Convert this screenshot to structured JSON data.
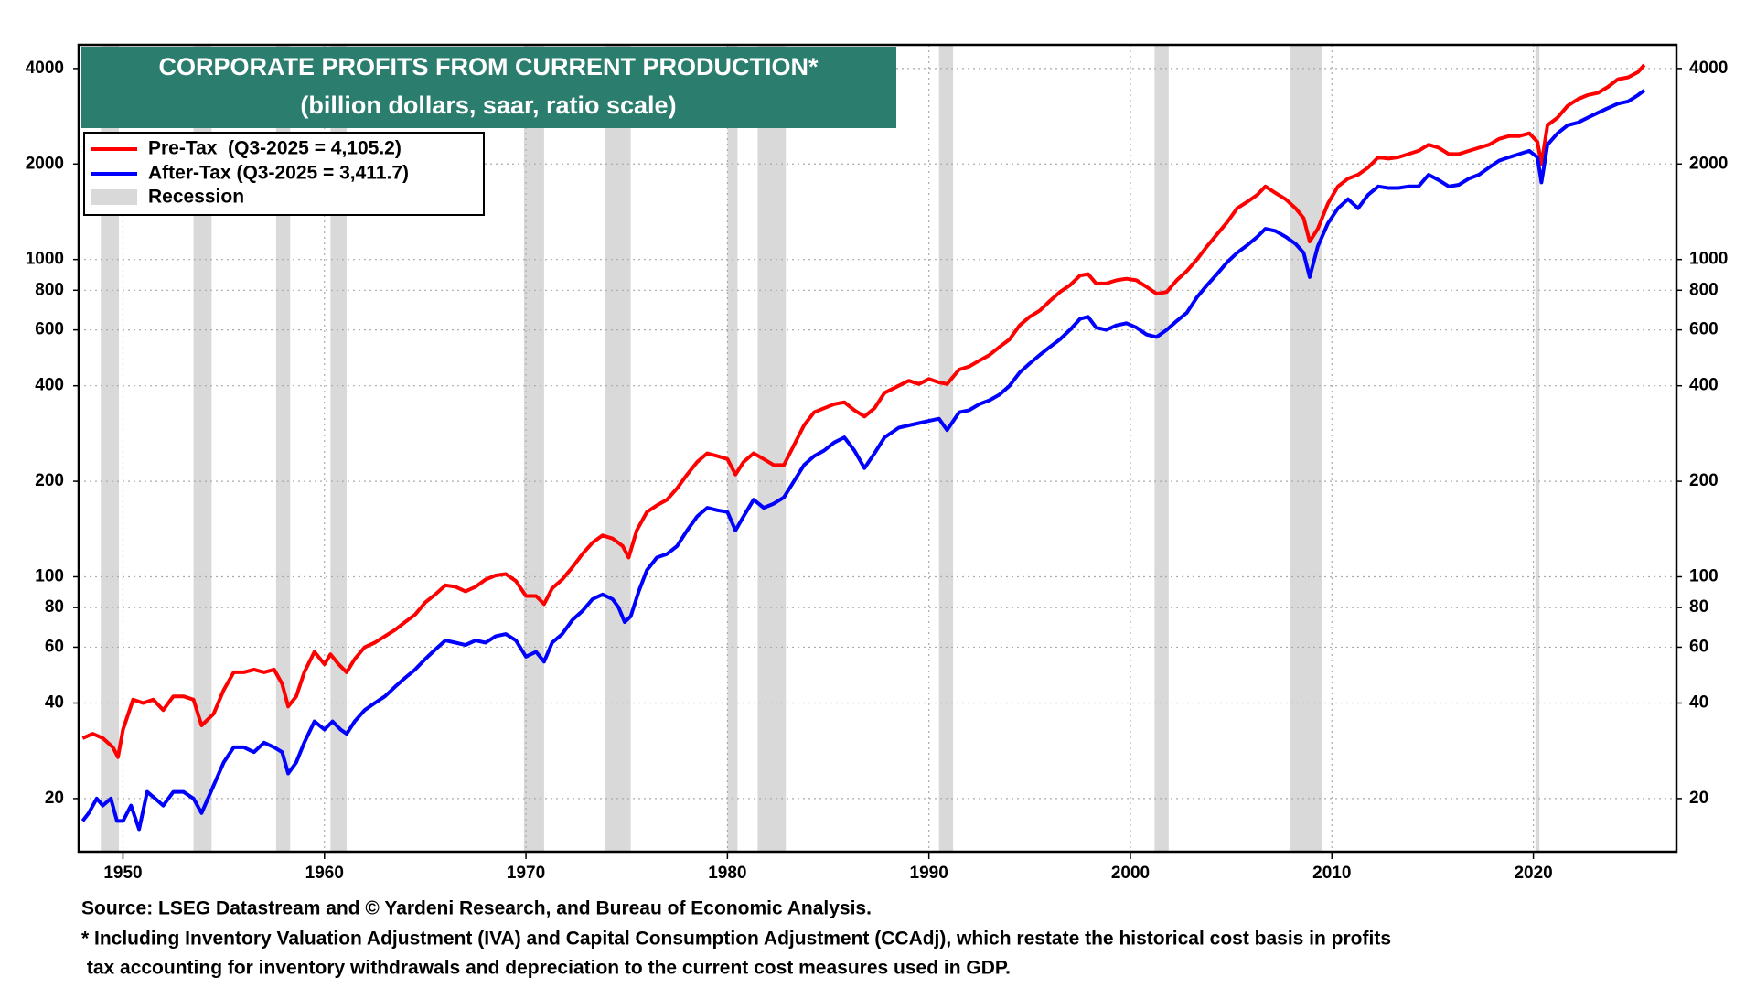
{
  "chart_data": {
    "type": "line",
    "title": "CORPORATE PROFITS FROM CURRENT PRODUCTION*",
    "subtitle": "(billion dollars, saar, ratio scale)",
    "source": "Source: LSEG Datastream and © Yardeni Research, and Bureau of Economic Analysis.",
    "note": [
      "* Including Inventory Valuation Adjustment (IVA) and Capital Consumption Adjustment (CCAdj), which restate the historical cost basis in profits",
      " tax accounting for inventory withdrawals and depreciation to the current cost measures used in GDP."
    ],
    "log_scale": true,
    "grid": true,
    "xlim": [
      1947.8,
      2027.1
    ],
    "xticks": [
      1950,
      1960,
      1970,
      1980,
      1990,
      2000,
      2010,
      2020
    ],
    "ylim": [
      13.6,
      4750
    ],
    "yticks": [
      20,
      40,
      60,
      80,
      100,
      200,
      400,
      600,
      800,
      1000,
      2000,
      4000
    ],
    "recession_label": "Recession",
    "recession_color": "#d9d9d9",
    "recessions": [
      [
        1948.9,
        1949.8
      ],
      [
        1953.5,
        1954.4
      ],
      [
        1957.6,
        1958.3
      ],
      [
        1960.3,
        1961.1
      ],
      [
        1969.9,
        1970.9
      ],
      [
        1973.9,
        1975.2
      ],
      [
        1980.0,
        1980.5
      ],
      [
        1981.5,
        1982.9
      ],
      [
        1990.5,
        1991.2
      ],
      [
        2001.2,
        2001.9
      ],
      [
        2007.9,
        2009.5
      ],
      [
        2020.1,
        2020.3
      ]
    ],
    "series": [
      {
        "name": "Pre-Tax  (Q3-2025 = 4,105.2)",
        "color": "#ff0000",
        "x": [
          1948,
          1948.5,
          1949,
          1949.5,
          1949.75,
          1950,
          1950.5,
          1951,
          1951.5,
          1952,
          1952.5,
          1953,
          1953.5,
          1953.9,
          1954.5,
          1955,
          1955.5,
          1956,
          1956.5,
          1957,
          1957.5,
          1957.9,
          1958.2,
          1958.6,
          1959,
          1959.5,
          1960,
          1960.3,
          1960.7,
          1961.1,
          1961.5,
          1962,
          1962.5,
          1963,
          1963.5,
          1964,
          1964.5,
          1965,
          1965.5,
          1966,
          1966.5,
          1967,
          1967.5,
          1968,
          1968.5,
          1969,
          1969.5,
          1970,
          1970.5,
          1970.9,
          1971.3,
          1971.8,
          1972.3,
          1972.8,
          1973.3,
          1973.8,
          1974.3,
          1974.8,
          1975.1,
          1975.5,
          1976,
          1976.5,
          1977,
          1977.5,
          1978,
          1978.5,
          1979,
          1979.5,
          1980,
          1980.4,
          1980.8,
          1981.3,
          1981.8,
          1982.3,
          1982.8,
          1983.3,
          1983.8,
          1984.3,
          1984.8,
          1985.3,
          1985.8,
          1986.3,
          1986.8,
          1987.3,
          1987.8,
          1988.5,
          1989,
          1989.5,
          1990,
          1990.5,
          1990.9,
          1991.5,
          1992,
          1992.5,
          1993,
          1993.5,
          1994,
          1994.5,
          1995,
          1995.5,
          1996,
          1996.5,
          1997,
          1997.5,
          1997.9,
          1998.3,
          1998.8,
          1999.3,
          1999.8,
          2000.3,
          2000.8,
          2001.3,
          2001.8,
          2002.3,
          2002.8,
          2003.3,
          2003.8,
          2004.3,
          2004.8,
          2005.3,
          2005.8,
          2006.3,
          2006.7,
          2007.2,
          2007.7,
          2008.2,
          2008.6,
          2008.9,
          2009.3,
          2009.8,
          2010.3,
          2010.8,
          2011.3,
          2011.8,
          2012.3,
          2012.8,
          2013.3,
          2013.8,
          2014.3,
          2014.8,
          2015.3,
          2015.8,
          2016.3,
          2016.8,
          2017.3,
          2017.8,
          2018.3,
          2018.8,
          2019.3,
          2019.8,
          2020.2,
          2020.4,
          2020.7,
          2021.2,
          2021.7,
          2022.2,
          2022.7,
          2023.2,
          2023.7,
          2024.2,
          2024.7,
          2025.2,
          2025.5
        ],
        "values": [
          31,
          32,
          31,
          29,
          27,
          33,
          41,
          40,
          41,
          38,
          42,
          42,
          41,
          34,
          37,
          44,
          50,
          50,
          51,
          50,
          51,
          46,
          39,
          42,
          50,
          58,
          53,
          57,
          53,
          50,
          55,
          60,
          62,
          65,
          68,
          72,
          76,
          83,
          88,
          94,
          93,
          90,
          93,
          98,
          101,
          102,
          97,
          87,
          87,
          82,
          92,
          98,
          107,
          118,
          128,
          135,
          132,
          125,
          115,
          140,
          160,
          168,
          175,
          190,
          210,
          230,
          245,
          240,
          235,
          210,
          230,
          245,
          235,
          225,
          225,
          260,
          300,
          330,
          340,
          350,
          355,
          335,
          320,
          340,
          380,
          400,
          415,
          405,
          420,
          410,
          405,
          450,
          460,
          480,
          500,
          530,
          560,
          620,
          660,
          690,
          740,
          790,
          830,
          890,
          900,
          840,
          840,
          860,
          870,
          860,
          820,
          780,
          790,
          860,
          920,
          1000,
          1100,
          1200,
          1310,
          1450,
          1520,
          1600,
          1700,
          1620,
          1550,
          1450,
          1350,
          1140,
          1250,
          1500,
          1700,
          1800,
          1850,
          1950,
          2100,
          2080,
          2100,
          2150,
          2200,
          2300,
          2250,
          2150,
          2150,
          2200,
          2250,
          2300,
          2400,
          2450,
          2450,
          2500,
          2350,
          2000,
          2650,
          2800,
          3050,
          3200,
          3300,
          3350,
          3500,
          3700,
          3750,
          3900,
          4105.2
        ]
      },
      {
        "name": "After-Tax (Q3-2025 = 3,411.7)",
        "color": "#0000ff",
        "x": [
          1948,
          1948.3,
          1948.7,
          1949,
          1949.4,
          1949.7,
          1950,
          1950.4,
          1950.8,
          1951.2,
          1951.6,
          1952,
          1952.5,
          1953,
          1953.5,
          1953.9,
          1954.5,
          1955,
          1955.5,
          1956,
          1956.5,
          1957,
          1957.5,
          1957.9,
          1958.2,
          1958.6,
          1959,
          1959.5,
          1960,
          1960.4,
          1960.8,
          1961.1,
          1961.5,
          1962,
          1962.5,
          1963,
          1963.5,
          1964,
          1964.5,
          1965,
          1965.5,
          1966,
          1966.5,
          1967,
          1967.5,
          1968,
          1968.5,
          1969,
          1969.5,
          1970,
          1970.5,
          1970.9,
          1971.3,
          1971.8,
          1972.3,
          1972.8,
          1973.3,
          1973.8,
          1974.3,
          1974.6,
          1974.9,
          1975.2,
          1975.6,
          1976,
          1976.5,
          1977,
          1977.5,
          1978,
          1978.5,
          1979,
          1979.5,
          1980,
          1980.4,
          1980.8,
          1981.3,
          1981.8,
          1982.3,
          1982.8,
          1983.3,
          1983.8,
          1984.3,
          1984.8,
          1985.3,
          1985.8,
          1986.3,
          1986.8,
          1987.3,
          1987.8,
          1988.5,
          1989,
          1989.5,
          1990,
          1990.5,
          1990.9,
          1991.5,
          1992,
          1992.5,
          1993,
          1993.5,
          1994,
          1994.5,
          1995,
          1995.5,
          1996,
          1996.5,
          1997,
          1997.5,
          1997.9,
          1998.3,
          1998.8,
          1999.3,
          1999.8,
          2000.3,
          2000.8,
          2001.3,
          2001.8,
          2002.3,
          2002.8,
          2003.3,
          2003.8,
          2004.3,
          2004.8,
          2005.3,
          2005.8,
          2006.3,
          2006.7,
          2007.2,
          2007.7,
          2008.2,
          2008.6,
          2008.9,
          2009.3,
          2009.8,
          2010.3,
          2010.8,
          2011.3,
          2011.8,
          2012.3,
          2012.8,
          2013.3,
          2013.8,
          2014.3,
          2014.8,
          2015.3,
          2015.8,
          2016.3,
          2016.8,
          2017.3,
          2017.8,
          2018.3,
          2018.8,
          2019.3,
          2019.8,
          2020.2,
          2020.4,
          2020.7,
          2021.2,
          2021.7,
          2022.2,
          2022.7,
          2023.2,
          2023.7,
          2024.2,
          2024.7,
          2025.2,
          2025.5
        ],
        "values": [
          17,
          18,
          20,
          19,
          20,
          17,
          17,
          19,
          16,
          21,
          20,
          19,
          21,
          21,
          20,
          18,
          22,
          26,
          29,
          29,
          28,
          30,
          29,
          28,
          24,
          26,
          30,
          35,
          33,
          35,
          33,
          32,
          35,
          38,
          40,
          42,
          45,
          48,
          51,
          55,
          59,
          63,
          62,
          61,
          63,
          62,
          65,
          66,
          63,
          56,
          58,
          54,
          62,
          66,
          73,
          78,
          85,
          88,
          85,
          80,
          72,
          75,
          90,
          105,
          115,
          118,
          125,
          140,
          155,
          165,
          162,
          160,
          140,
          155,
          175,
          165,
          170,
          178,
          200,
          225,
          240,
          250,
          265,
          275,
          250,
          220,
          245,
          275,
          295,
          300,
          305,
          310,
          315,
          290,
          330,
          335,
          350,
          360,
          375,
          400,
          440,
          470,
          500,
          530,
          560,
          600,
          650,
          660,
          610,
          600,
          620,
          630,
          610,
          580,
          570,
          600,
          640,
          680,
          760,
          830,
          900,
          980,
          1050,
          1110,
          1180,
          1250,
          1230,
          1180,
          1120,
          1050,
          880,
          1100,
          1300,
          1450,
          1550,
          1450,
          1600,
          1700,
          1680,
          1680,
          1700,
          1700,
          1850,
          1780,
          1700,
          1720,
          1800,
          1850,
          1950,
          2050,
          2100,
          2150,
          2200,
          2100,
          1750,
          2300,
          2500,
          2650,
          2700,
          2800,
          2900,
          3000,
          3100,
          3150,
          3300,
          3411.7
        ]
      }
    ]
  }
}
